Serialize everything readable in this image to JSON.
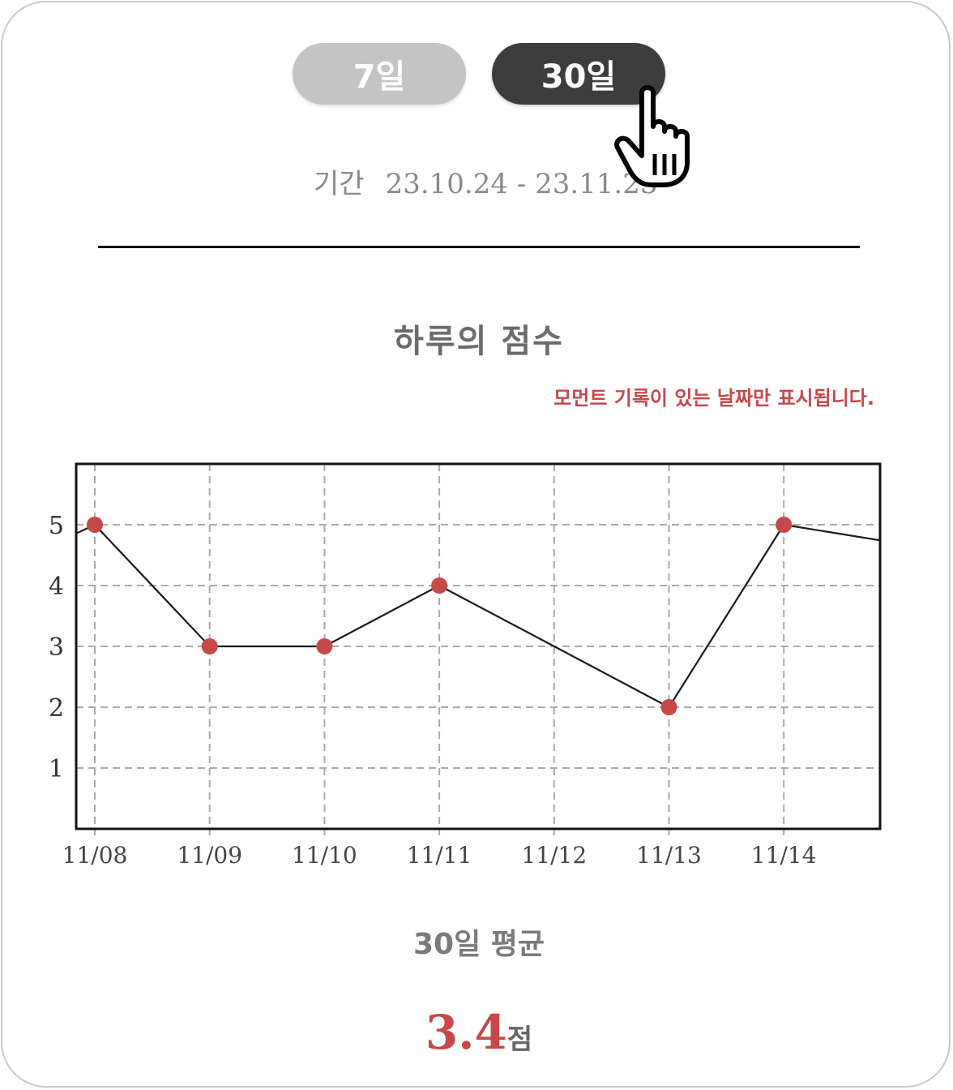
{
  "tabs": [
    {
      "label": "7일",
      "selected": false
    },
    {
      "label": "30일",
      "selected": true
    }
  ],
  "period": {
    "label": "기간",
    "range": "23.10.24 - 23.11.23"
  },
  "chart_title": "하루의 점수",
  "notice": "모먼트 기록이 있는 날짜만 표시됩니다.",
  "colors": {
    "accent": "#c8484a",
    "selected_tab": "#3d3d3d",
    "unselected_tab": "#c4c4c4"
  },
  "chart_data": {
    "type": "line",
    "x": [
      "11/08",
      "11/09",
      "11/10",
      "11/11",
      "11/12",
      "11/13",
      "11/14"
    ],
    "series": [
      {
        "values": [
          5,
          3,
          3,
          4,
          null,
          2,
          5
        ]
      }
    ],
    "y_ticks": [
      1,
      2,
      3,
      4,
      5
    ],
    "ylim": [
      0,
      6
    ],
    "grid": true,
    "line_continues_past_edges": true
  },
  "average": {
    "label": "30일 평균",
    "value": "3.4",
    "unit": "점"
  }
}
